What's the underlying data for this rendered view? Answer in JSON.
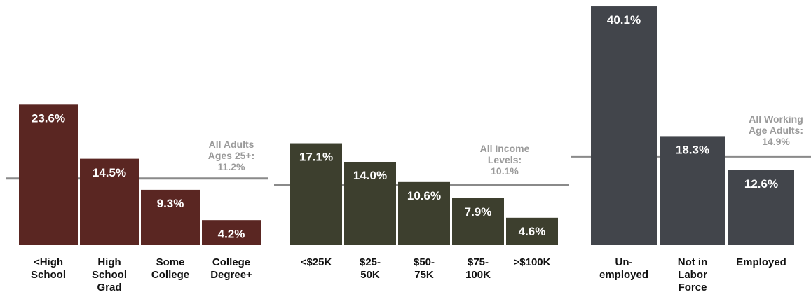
{
  "chart_data": [
    {
      "type": "bar",
      "color": "#5a2622",
      "categories": [
        [
          "<High",
          "School"
        ],
        [
          "High",
          "School",
          "Grad"
        ],
        [
          "Some",
          "College"
        ],
        [
          "College",
          "Degree+"
        ]
      ],
      "values": [
        23.6,
        14.5,
        9.3,
        4.2
      ],
      "value_labels": [
        "23.6%",
        "14.5%",
        "9.3%",
        "4.2%"
      ],
      "reference": {
        "value": 11.2,
        "label": [
          "All Adults",
          "Ages 25+:",
          "11.2%"
        ]
      }
    },
    {
      "type": "bar",
      "color": "#3d3f2e",
      "categories": [
        [
          "<$25K"
        ],
        [
          "$25-",
          "50K"
        ],
        [
          "$50-",
          "75K"
        ],
        [
          "$75-",
          "100K"
        ],
        [
          ">$100K"
        ]
      ],
      "values": [
        17.1,
        14.0,
        10.6,
        7.9,
        4.6
      ],
      "value_labels": [
        "17.1%",
        "14.0%",
        "10.6%",
        "7.9%",
        "4.6%"
      ],
      "reference": {
        "value": 10.1,
        "label": [
          "All Income",
          "Levels:",
          "10.1%"
        ]
      }
    },
    {
      "type": "bar",
      "color": "#42454b",
      "categories": [
        [
          "Un-",
          "employed"
        ],
        [
          "Not in",
          "Labor",
          "Force"
        ],
        [
          "Employed"
        ]
      ],
      "values": [
        40.1,
        18.3,
        12.6
      ],
      "value_labels": [
        "40.1%",
        "18.3%",
        "12.6%"
      ],
      "reference": {
        "value": 14.9,
        "label": [
          "All Working",
          "Age Adults:",
          "14.9%"
        ]
      }
    }
  ],
  "reference_line_color": "#8a8a8a",
  "reference_label_color": "#9a9a9a"
}
